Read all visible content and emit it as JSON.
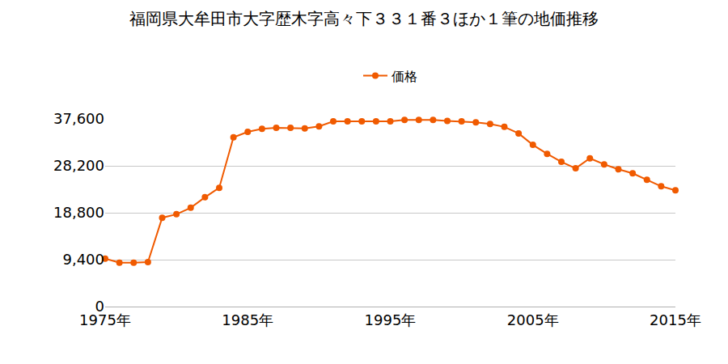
{
  "chart_data": {
    "type": "line",
    "title": "福岡県大牟田市大字歴木字高々下３３１番３ほか１筆の地価推移",
    "x": [
      1975,
      1976,
      1977,
      1978,
      1979,
      1980,
      1981,
      1982,
      1983,
      1984,
      1985,
      1986,
      1987,
      1988,
      1989,
      1990,
      1991,
      1992,
      1993,
      1994,
      1995,
      1996,
      1997,
      1998,
      1999,
      2000,
      2001,
      2002,
      2003,
      2004,
      2005,
      2006,
      2007,
      2008,
      2009,
      2010,
      2011,
      2012,
      2013,
      2014,
      2015
    ],
    "series": [
      {
        "name": "価格",
        "color": "#f05a00",
        "marker": "circle",
        "values": [
          9600,
          8800,
          8800,
          8900,
          17800,
          18500,
          19800,
          21900,
          23800,
          33900,
          35000,
          35600,
          35800,
          35800,
          35700,
          36100,
          37100,
          37100,
          37100,
          37100,
          37100,
          37400,
          37400,
          37400,
          37200,
          37100,
          36900,
          36600,
          36000,
          34700,
          32400,
          30600,
          29000,
          27700,
          29700,
          28500,
          27500,
          26700,
          25400,
          24100,
          23300
        ]
      }
    ],
    "xlim": [
      1975,
      2015
    ],
    "xticks": [
      {
        "value": 1975,
        "label": "1975年"
      },
      {
        "value": 1985,
        "label": "1985年"
      },
      {
        "value": 1995,
        "label": "1995年"
      },
      {
        "value": 2005,
        "label": "2005年"
      },
      {
        "value": 2015,
        "label": "2015年"
      }
    ],
    "ylim": [
      0,
      37600
    ],
    "yticks": [
      0,
      {
        "value": 9400,
        "label": "9,400"
      },
      {
        "value": 18800,
        "label": "18,800"
      },
      {
        "value": 28200,
        "label": "28,200"
      },
      {
        "value": 37600,
        "label": "37,600"
      }
    ],
    "grid": true,
    "legend": "top"
  }
}
